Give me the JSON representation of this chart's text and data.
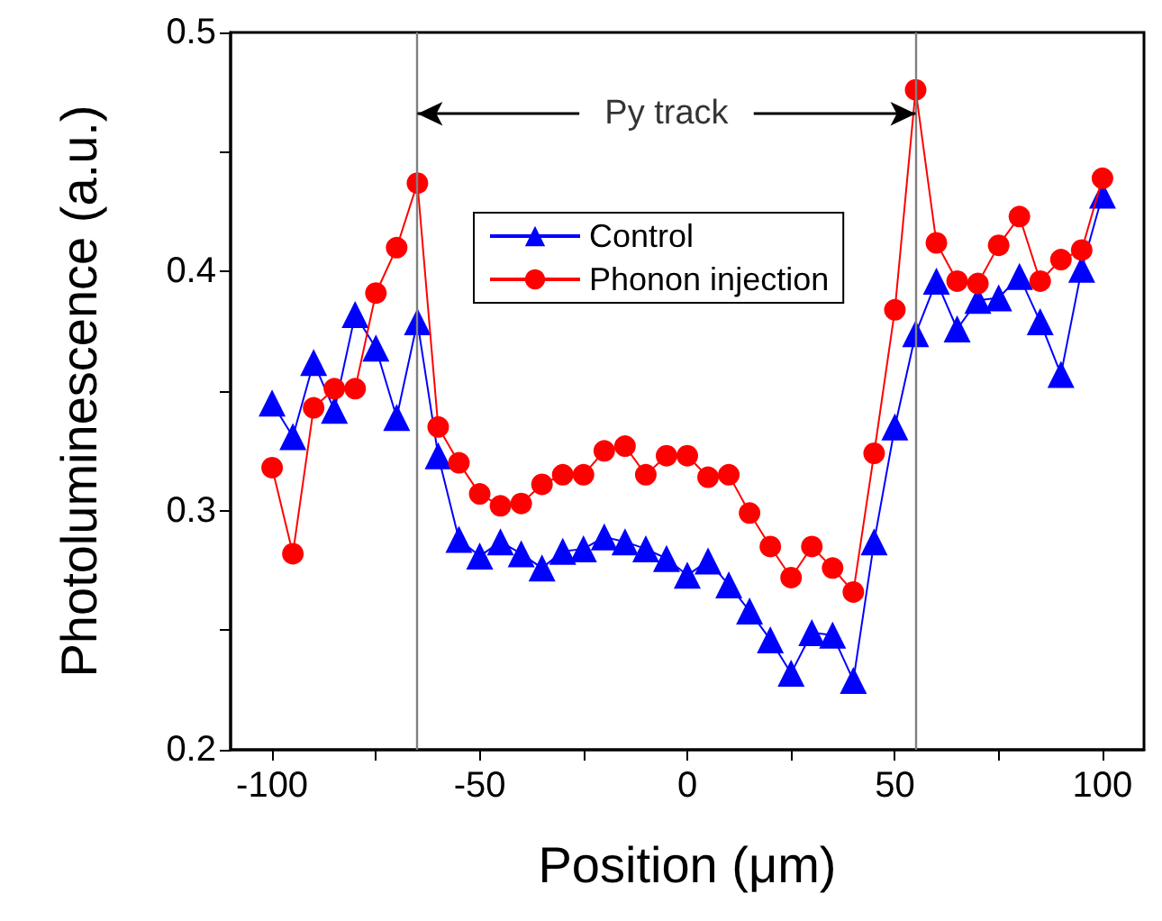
{
  "chart_data": {
    "type": "line",
    "xlabel": "Position (μm)",
    "ylabel": "Photoluminescence (a.u.)",
    "x": [
      -100,
      -95,
      -90,
      -85,
      -80,
      -75,
      -70,
      -65,
      -60,
      -55,
      -50,
      -45,
      -40,
      -35,
      -30,
      -25,
      -20,
      -15,
      -10,
      -5,
      0,
      5,
      10,
      15,
      20,
      25,
      30,
      35,
      40,
      45,
      50,
      55,
      60,
      65,
      70,
      75,
      80,
      85,
      90,
      95,
      100
    ],
    "series": [
      {
        "name": "Control",
        "color": "#0000ff",
        "marker": "triangle",
        "values": [
          0.345,
          0.331,
          0.362,
          0.342,
          0.382,
          0.368,
          0.339,
          0.379,
          0.323,
          0.288,
          0.281,
          0.287,
          0.282,
          0.276,
          0.283,
          0.284,
          0.289,
          0.287,
          0.284,
          0.28,
          0.273,
          0.279,
          0.269,
          0.258,
          0.246,
          0.232,
          0.249,
          0.248,
          0.229,
          0.287,
          0.335,
          0.374,
          0.396,
          0.376,
          0.388,
          0.389,
          0.398,
          0.379,
          0.357,
          0.401,
          0.432
        ]
      },
      {
        "name": "Phonon injection",
        "color": "#ff0000",
        "marker": "circle",
        "values": [
          0.318,
          0.282,
          0.343,
          0.351,
          0.351,
          0.391,
          0.41,
          0.437,
          0.335,
          0.32,
          0.307,
          0.302,
          0.303,
          0.311,
          0.315,
          0.315,
          0.325,
          0.327,
          0.315,
          0.323,
          0.323,
          0.314,
          0.315,
          0.299,
          0.285,
          0.272,
          0.285,
          0.276,
          0.266,
          0.324,
          0.384,
          0.476,
          0.412,
          0.396,
          0.395,
          0.411,
          0.423,
          0.396,
          0.405,
          0.409,
          0.439
        ]
      }
    ],
    "xlim": [
      -110,
      110
    ],
    "xticks": [
      -100,
      {
        "value": -75,
        "label": null
      },
      -50,
      {
        "value": -25,
        "label": null
      },
      0,
      {
        "value": 25,
        "label": null
      },
      50,
      {
        "value": 75,
        "label": null
      },
      100
    ],
    "ylim": [
      0.2,
      0.5
    ],
    "yticks": [
      {
        "value": 0.2,
        "label": "0.2"
      },
      {
        "value": 0.25,
        "label": null
      },
      {
        "value": 0.3,
        "label": "0.3"
      },
      {
        "value": 0.35,
        "label": null
      },
      {
        "value": 0.4,
        "label": "0.4"
      },
      {
        "value": 0.45,
        "label": null
      },
      {
        "value": 0.5,
        "label": "0.5"
      }
    ],
    "ref_lines": [
      {
        "axis": "x",
        "value": -65,
        "color": "#808080"
      },
      {
        "axis": "x",
        "value": 55,
        "color": "#808080"
      }
    ],
    "annotations": [
      {
        "text": "Py track",
        "x": -65,
        "y": 0.466
      }
    ],
    "legend": "top",
    "grid": false,
    "line_style": "solid"
  }
}
